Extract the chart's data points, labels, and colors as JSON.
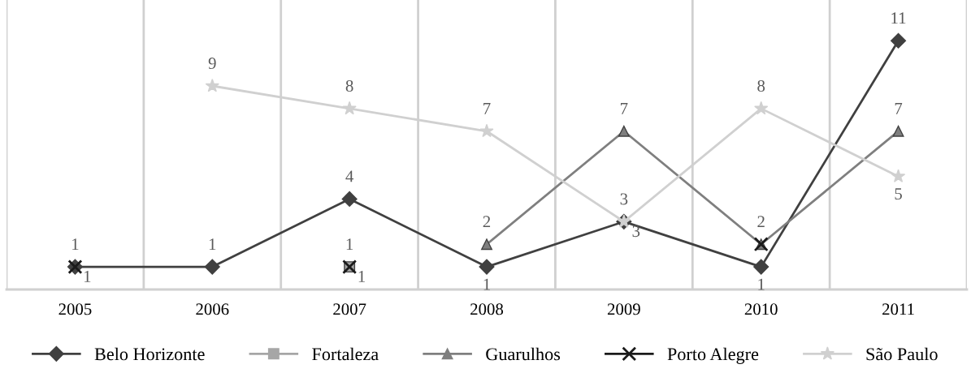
{
  "chart_data": {
    "type": "line",
    "categories": [
      "2005",
      "2006",
      "2007",
      "2008",
      "2009",
      "2010",
      "2011"
    ],
    "series": [
      {
        "name": "Belo Horizonte",
        "color": "#404040",
        "marker": "diamond",
        "values": [
          1,
          1,
          4,
          1,
          3,
          1,
          11
        ],
        "value_labels": [
          "1",
          "1",
          "4",
          "1",
          "3",
          "1",
          "11"
        ]
      },
      {
        "name": "Fortaleza",
        "color": "#a6a6a6",
        "marker": "square",
        "values": [
          null,
          null,
          1,
          null,
          null,
          null,
          null
        ],
        "value_labels": [
          null,
          null,
          "1",
          null,
          null,
          null,
          null
        ]
      },
      {
        "name": "Guarulhos",
        "color": "#7f7f7f",
        "marker": "triangle",
        "values": [
          null,
          null,
          null,
          2,
          7,
          2,
          7
        ],
        "value_labels": [
          null,
          null,
          null,
          "2",
          "7",
          "2",
          "7"
        ]
      },
      {
        "name": "Porto Alegre",
        "color": "#1a1a1a",
        "marker": "cross",
        "values": [
          1,
          null,
          1,
          null,
          null,
          2,
          null
        ],
        "value_labels": [
          "1",
          null,
          "1",
          null,
          null,
          null,
          null
        ]
      },
      {
        "name": "São Paulo",
        "color": "#d0d0d0",
        "marker": "star",
        "values": [
          null,
          9,
          8,
          7,
          3,
          8,
          5
        ],
        "value_labels": [
          null,
          "9",
          "8",
          "7",
          "3",
          "8",
          "5"
        ]
      }
    ],
    "ylim": [
      0,
      12.8
    ],
    "tick_labels": "x",
    "grid": "x",
    "legend": "bottom",
    "line_style": "solid"
  }
}
